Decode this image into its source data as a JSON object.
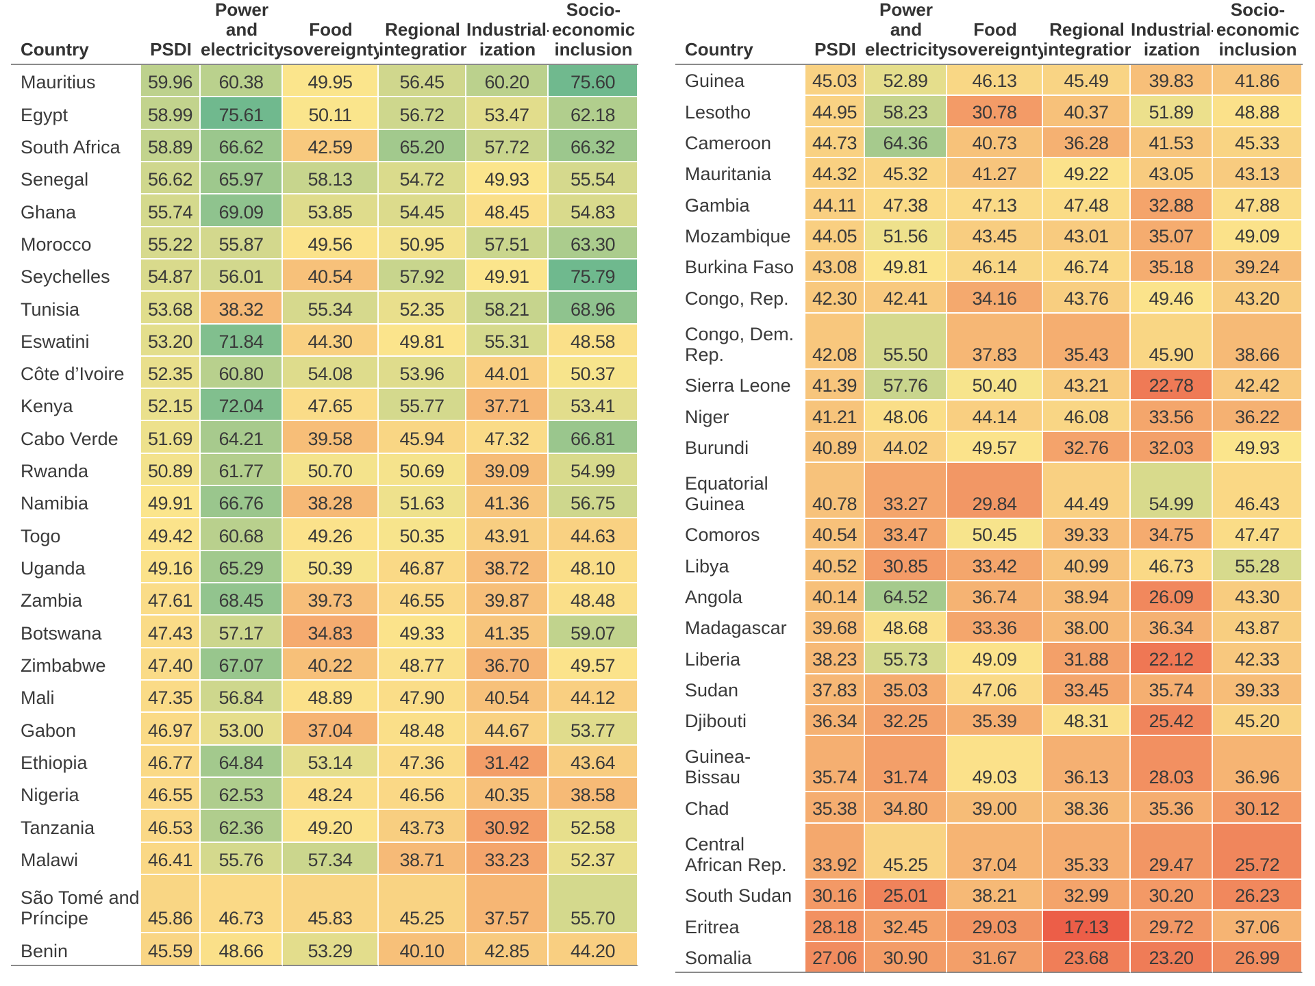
{
  "chart_data": {
    "type": "table",
    "columns": [
      "Country",
      "PSDI",
      "Power and electricity",
      "Food sovereignty",
      "Regional integration",
      "Industrial-ization",
      "Socio-economic inclusion"
    ],
    "column_headers_display": [
      [
        "Country"
      ],
      [
        "PSDI"
      ],
      [
        "Power and",
        "electricity"
      ],
      [
        "Food",
        "sovereignty"
      ],
      [
        "Regional",
        "integration"
      ],
      [
        "Industrial-",
        "ization"
      ],
      [
        "Socio-",
        "economic",
        "inclusion"
      ]
    ],
    "color_scale": {
      "low": "#ec5e48",
      "mid": "#fbe58c",
      "high": "#6fb98e",
      "min": 17.13,
      "mid_value": 50,
      "max": 75.79
    },
    "tables": [
      {
        "rows": [
          {
            "country": "Mauritius",
            "values": [
              59.96,
              60.38,
              49.95,
              56.45,
              60.2,
              75.6
            ]
          },
          {
            "country": "Egypt",
            "values": [
              58.99,
              75.61,
              50.11,
              56.72,
              53.47,
              62.18
            ]
          },
          {
            "country": "South Africa",
            "values": [
              58.89,
              66.62,
              42.59,
              65.2,
              57.72,
              66.32
            ]
          },
          {
            "country": "Senegal",
            "values": [
              56.62,
              65.97,
              58.13,
              54.72,
              49.93,
              55.54
            ]
          },
          {
            "country": "Ghana",
            "values": [
              55.74,
              69.09,
              53.85,
              54.45,
              48.45,
              54.83
            ]
          },
          {
            "country": "Morocco",
            "values": [
              55.22,
              55.87,
              49.56,
              50.95,
              57.51,
              63.3
            ]
          },
          {
            "country": "Seychelles",
            "values": [
              54.87,
              56.01,
              40.54,
              57.92,
              49.91,
              75.79
            ]
          },
          {
            "country": "Tunisia",
            "values": [
              53.68,
              38.32,
              55.34,
              52.35,
              58.21,
              68.96
            ]
          },
          {
            "country": "Eswatini",
            "values": [
              53.2,
              71.84,
              44.3,
              49.81,
              55.31,
              48.58
            ]
          },
          {
            "country": "Côte d’Ivoire",
            "values": [
              52.35,
              60.8,
              54.08,
              53.96,
              44.01,
              50.37
            ]
          },
          {
            "country": "Kenya",
            "values": [
              52.15,
              72.04,
              47.65,
              55.77,
              37.71,
              53.41
            ]
          },
          {
            "country": "Cabo Verde",
            "values": [
              51.69,
              64.21,
              39.58,
              45.94,
              47.32,
              66.81
            ]
          },
          {
            "country": "Rwanda",
            "values": [
              50.89,
              61.77,
              50.7,
              50.69,
              39.09,
              54.99
            ]
          },
          {
            "country": "Namibia",
            "values": [
              49.91,
              66.76,
              38.28,
              51.63,
              41.36,
              56.75
            ]
          },
          {
            "country": "Togo",
            "values": [
              49.42,
              60.68,
              49.26,
              50.35,
              43.91,
              44.63
            ]
          },
          {
            "country": "Uganda",
            "values": [
              49.16,
              65.29,
              50.39,
              46.87,
              38.72,
              48.1
            ]
          },
          {
            "country": "Zambia",
            "values": [
              47.61,
              68.45,
              39.73,
              46.55,
              39.87,
              48.48
            ]
          },
          {
            "country": "Botswana",
            "values": [
              47.43,
              57.17,
              34.83,
              49.33,
              41.35,
              59.07
            ]
          },
          {
            "country": "Zimbabwe",
            "values": [
              47.4,
              67.07,
              40.22,
              48.77,
              36.7,
              49.57
            ]
          },
          {
            "country": "Mali",
            "values": [
              47.35,
              56.84,
              48.89,
              47.9,
              40.54,
              44.12
            ]
          },
          {
            "country": "Gabon",
            "values": [
              46.97,
              53.0,
              37.04,
              48.48,
              44.67,
              53.77
            ]
          },
          {
            "country": "Ethiopia",
            "values": [
              46.77,
              64.84,
              53.14,
              47.36,
              31.42,
              43.64
            ]
          },
          {
            "country": "Nigeria",
            "values": [
              46.55,
              62.53,
              48.24,
              46.56,
              40.35,
              38.58
            ]
          },
          {
            "country": "Tanzania",
            "values": [
              46.53,
              62.36,
              49.2,
              43.73,
              30.92,
              52.58
            ]
          },
          {
            "country": "Malawi",
            "values": [
              46.41,
              55.76,
              57.34,
              38.71,
              33.23,
              52.37
            ]
          },
          {
            "country": "São Tomé and Príncipe",
            "values": [
              45.86,
              46.73,
              45.83,
              45.25,
              37.57,
              55.7
            ]
          },
          {
            "country": "Benin",
            "values": [
              45.59,
              48.66,
              53.29,
              40.1,
              42.85,
              44.2
            ]
          }
        ]
      },
      {
        "rows": [
          {
            "country": "Guinea",
            "values": [
              45.03,
              52.89,
              46.13,
              45.49,
              39.83,
              41.86
            ]
          },
          {
            "country": "Lesotho",
            "values": [
              44.95,
              58.23,
              30.78,
              40.37,
              51.89,
              48.88
            ]
          },
          {
            "country": "Cameroon",
            "values": [
              44.73,
              64.36,
              40.73,
              36.28,
              41.53,
              45.33
            ]
          },
          {
            "country": "Mauritania",
            "values": [
              44.32,
              45.32,
              41.27,
              49.22,
              43.05,
              43.13
            ]
          },
          {
            "country": "Gambia",
            "values": [
              44.11,
              47.38,
              47.13,
              47.48,
              32.88,
              47.88
            ]
          },
          {
            "country": "Mozambique",
            "values": [
              44.05,
              51.56,
              43.45,
              43.01,
              35.07,
              49.09
            ]
          },
          {
            "country": "Burkina Faso",
            "values": [
              43.08,
              49.81,
              46.14,
              46.74,
              35.18,
              39.24
            ]
          },
          {
            "country": "Congo, Rep.",
            "values": [
              42.3,
              42.41,
              34.16,
              43.76,
              49.46,
              43.2
            ]
          },
          {
            "country": "Congo, Dem. Rep.",
            "values": [
              42.08,
              55.5,
              37.83,
              35.43,
              45.9,
              38.66
            ]
          },
          {
            "country": "Sierra Leone",
            "values": [
              41.39,
              57.76,
              50.4,
              43.21,
              22.78,
              42.42
            ]
          },
          {
            "country": "Niger",
            "values": [
              41.21,
              48.06,
              44.14,
              46.08,
              33.56,
              36.22
            ]
          },
          {
            "country": "Burundi",
            "values": [
              40.89,
              44.02,
              49.57,
              32.76,
              32.03,
              49.93
            ]
          },
          {
            "country": "Equatorial Guinea",
            "values": [
              40.78,
              33.27,
              29.84,
              44.49,
              54.99,
              46.43
            ]
          },
          {
            "country": "Comoros",
            "values": [
              40.54,
              33.47,
              50.45,
              39.33,
              34.75,
              47.47
            ]
          },
          {
            "country": "Libya",
            "values": [
              40.52,
              30.85,
              33.42,
              40.99,
              46.73,
              55.28
            ]
          },
          {
            "country": "Angola",
            "values": [
              40.14,
              64.52,
              36.74,
              38.94,
              26.09,
              43.3
            ]
          },
          {
            "country": "Madagascar",
            "values": [
              39.68,
              48.68,
              33.36,
              38.0,
              36.34,
              43.87
            ]
          },
          {
            "country": "Liberia",
            "values": [
              38.23,
              55.73,
              49.09,
              31.88,
              22.12,
              42.33
            ]
          },
          {
            "country": "Sudan",
            "values": [
              37.83,
              35.03,
              47.06,
              33.45,
              35.74,
              39.33
            ]
          },
          {
            "country": "Djibouti",
            "values": [
              36.34,
              32.25,
              35.39,
              48.31,
              25.42,
              45.2
            ]
          },
          {
            "country": "Guinea-Bissau",
            "values": [
              35.74,
              31.74,
              49.03,
              36.13,
              28.03,
              36.96
            ]
          },
          {
            "country": "Chad",
            "values": [
              35.38,
              34.8,
              39.0,
              38.36,
              35.36,
              30.12
            ]
          },
          {
            "country": "Central African Rep.",
            "values": [
              33.92,
              45.25,
              37.04,
              35.33,
              29.47,
              25.72
            ]
          },
          {
            "country": "South Sudan",
            "values": [
              30.16,
              25.01,
              38.21,
              32.99,
              30.2,
              26.23
            ]
          },
          {
            "country": "Eritrea",
            "values": [
              28.18,
              32.45,
              29.03,
              17.13,
              29.72,
              37.06
            ]
          },
          {
            "country": "Somalia",
            "values": [
              27.06,
              30.9,
              31.67,
              23.68,
              23.2,
              26.99
            ]
          }
        ]
      }
    ]
  }
}
